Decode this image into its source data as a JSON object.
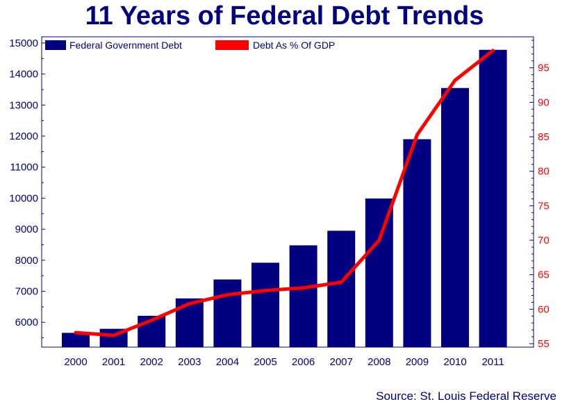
{
  "chart_data": {
    "type": "bar",
    "title": "11 Years of Federal Debt Trends",
    "source": "Source: St. Louis Federal Reserve",
    "categories": [
      "2000",
      "2001",
      "2002",
      "2003",
      "2004",
      "2005",
      "2006",
      "2007",
      "2008",
      "2009",
      "2010",
      "2011"
    ],
    "series": [
      {
        "name": "Federal Government Debt",
        "type": "bar",
        "axis": "left",
        "color": "#000080",
        "values": [
          5660,
          5790,
          6210,
          6770,
          7380,
          7920,
          8480,
          8950,
          9990,
          11900,
          13550,
          14780
        ]
      },
      {
        "name": "Debt As % Of GDP",
        "type": "line",
        "axis": "right",
        "color": "#ff0000",
        "values": [
          56.6,
          56.2,
          58.4,
          60.8,
          62.1,
          62.7,
          63.1,
          63.9,
          70.0,
          85.3,
          93.2,
          97.5
        ]
      }
    ],
    "y_left": {
      "ylim": [
        5200,
        15200
      ],
      "ticks": [
        6000,
        7000,
        8000,
        9000,
        10000,
        11000,
        12000,
        13000,
        14000,
        15000
      ]
    },
    "y_right": {
      "ylim": [
        54.5,
        99.5
      ],
      "ticks": [
        55,
        60,
        65,
        70,
        75,
        80,
        85,
        90,
        95
      ]
    },
    "legend_position": "top-left",
    "grid": false
  }
}
